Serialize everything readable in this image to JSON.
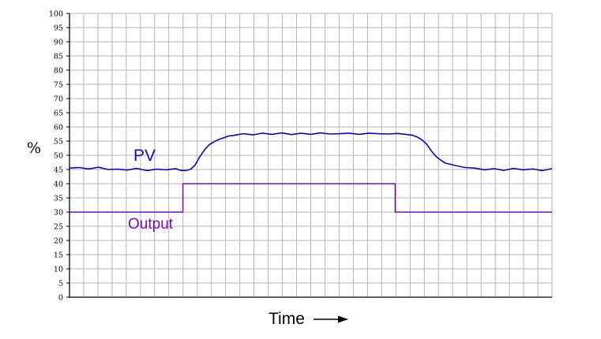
{
  "chart_data": {
    "type": "line",
    "ylabel": "%",
    "xlabel": "Time",
    "ylim": [
      0,
      100
    ],
    "y_ticks": [
      "0",
      "5",
      "10",
      "15",
      "20",
      "25",
      "30",
      "35",
      "40",
      "45",
      "50",
      "55",
      "60",
      "65",
      "70",
      "75",
      "80",
      "85",
      "90",
      "95",
      "100"
    ],
    "grid": true,
    "colors": {
      "pv": "#0a0aa0",
      "output": "#7010b0",
      "grid": "#b4b4b4",
      "axis": "#000000"
    },
    "series": [
      {
        "name": "PV",
        "x": [
          0,
          2,
          4,
          6,
          8,
          10,
          12,
          14,
          16,
          18,
          20,
          22,
          23,
          24,
          25,
          26,
          27,
          28,
          29,
          30,
          31,
          32,
          33,
          34,
          35,
          36,
          38,
          40,
          42,
          44,
          46,
          48,
          50,
          52,
          54,
          56,
          58,
          60,
          62,
          64,
          66,
          68,
          70,
          71,
          72,
          73,
          74,
          75,
          76,
          77,
          78,
          79,
          80,
          82,
          84,
          86,
          88,
          90,
          92,
          94,
          96,
          98,
          100
        ],
        "values": [
          45.5,
          45.7,
          45.2,
          45.8,
          45.0,
          45.1,
          44.8,
          45.4,
          44.6,
          45.1,
          44.9,
          45.3,
          44.7,
          44.6,
          45.0,
          46.5,
          49.5,
          52.0,
          53.8,
          54.8,
          55.6,
          56.2,
          56.8,
          57.0,
          57.3,
          57.6,
          57.2,
          57.8,
          57.4,
          57.9,
          57.3,
          57.8,
          57.4,
          57.9,
          57.5,
          57.6,
          57.8,
          57.4,
          57.8,
          57.6,
          57.5,
          57.7,
          57.3,
          57.1,
          56.5,
          55.5,
          54.0,
          51.5,
          49.5,
          48.2,
          47.2,
          46.8,
          46.4,
          45.7,
          45.5,
          44.9,
          45.3,
          44.7,
          45.4,
          44.9,
          45.2,
          44.6,
          45.3
        ]
      },
      {
        "name": "Output",
        "x": [
          0,
          23.5,
          23.5,
          67.5,
          67.5,
          100
        ],
        "values": [
          30,
          30,
          40,
          40,
          30,
          30
        ]
      }
    ],
    "annotations": {
      "pv_label": "PV",
      "output_label": "Output"
    }
  }
}
